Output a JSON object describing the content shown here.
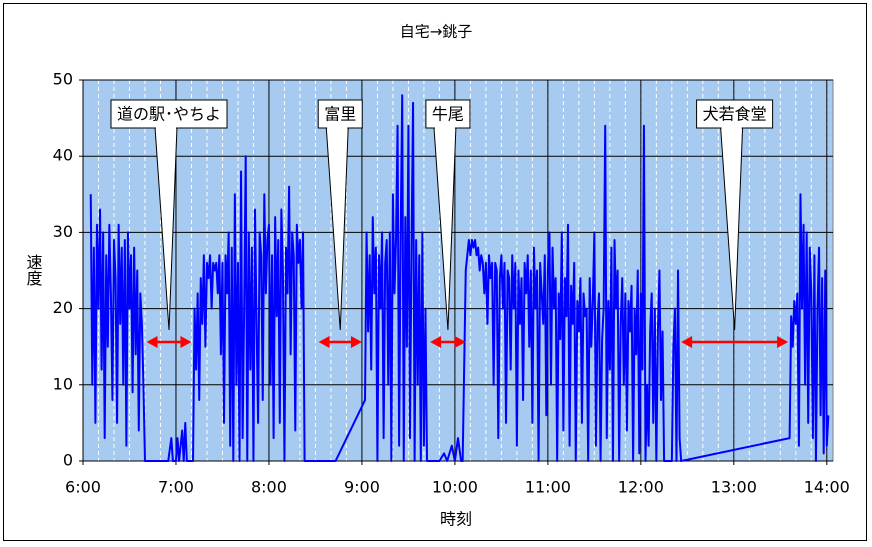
{
  "chart_data": {
    "type": "line",
    "title": "自宅→銚子",
    "x_label": "時刻",
    "y_label": "速度",
    "color": "#0000ff",
    "grid": true,
    "x_minor_grid_step": 10,
    "xlim": [
      360,
      844
    ],
    "ylim": [
      0,
      50
    ],
    "yticks": [
      0,
      10,
      20,
      30,
      40,
      50
    ],
    "xticks": [
      {
        "value": 360,
        "label": "6:00"
      },
      {
        "value": 420,
        "label": "7:00"
      },
      {
        "value": 480,
        "label": "8:00"
      },
      {
        "value": 540,
        "label": "9:00"
      },
      {
        "value": 600,
        "label": "10:00"
      },
      {
        "value": 660,
        "label": "11:00"
      },
      {
        "value": 720,
        "label": "12:00"
      },
      {
        "value": 780,
        "label": "13:00"
      },
      {
        "value": 840,
        "label": "14:00"
      }
    ],
    "annotations": [
      {
        "text": "道の駅･やちよ",
        "start": 401,
        "end": 430,
        "color": "#ff0000"
      },
      {
        "text": "富里",
        "start": 512,
        "end": 540,
        "color": "#ff0000"
      },
      {
        "text": "牛尾",
        "start": 584,
        "end": 607,
        "color": "#ff0000"
      },
      {
        "text": "犬若食堂",
        "start": 746,
        "end": 815,
        "color": "#ff0000"
      }
    ],
    "x": [
      365,
      366,
      367,
      368,
      369,
      370,
      371,
      372,
      373,
      374,
      375,
      376,
      377,
      378,
      379,
      380,
      381,
      382,
      383,
      384,
      385,
      386,
      387,
      388,
      389,
      390,
      391,
      392,
      393,
      394,
      395,
      396,
      397,
      398,
      399,
      400,
      405,
      415,
      417,
      418,
      420,
      421,
      422,
      424,
      425,
      426,
      427,
      431,
      432,
      433,
      434,
      435,
      436,
      437,
      438,
      439,
      440,
      441,
      442,
      443,
      444,
      445,
      446,
      447,
      448,
      449,
      450,
      451,
      452,
      453,
      454,
      455,
      456,
      457,
      458,
      459,
      460,
      461,
      462,
      463,
      464,
      465,
      466,
      467,
      468,
      469,
      470,
      471,
      472,
      473,
      474,
      475,
      476,
      477,
      478,
      479,
      480,
      481,
      482,
      483,
      484,
      485,
      486,
      487,
      488,
      489,
      490,
      491,
      492,
      493,
      494,
      495,
      496,
      497,
      498,
      499,
      500,
      501,
      502,
      503,
      505,
      515,
      523,
      542,
      543,
      544,
      545,
      546,
      547,
      548,
      549,
      550,
      551,
      552,
      553,
      554,
      555,
      556,
      557,
      558,
      559,
      560,
      561,
      562,
      563,
      564,
      565,
      566,
      567,
      568,
      569,
      570,
      571,
      572,
      573,
      574,
      575,
      576,
      577,
      578,
      579,
      580,
      581,
      582,
      590,
      593,
      595,
      598,
      600,
      602,
      604,
      605,
      607,
      608,
      609,
      610,
      611,
      612,
      613,
      614,
      615,
      616,
      617,
      618,
      619,
      620,
      621,
      622,
      623,
      624,
      625,
      626,
      627,
      628,
      629,
      630,
      631,
      632,
      633,
      634,
      635,
      636,
      637,
      638,
      639,
      640,
      641,
      642,
      643,
      644,
      645,
      646,
      647,
      648,
      649,
      650,
      651,
      652,
      653,
      654,
      655,
      656,
      657,
      658,
      659,
      660,
      661,
      662,
      663,
      664,
      665,
      666,
      667,
      668,
      669,
      670,
      671,
      672,
      673,
      674,
      675,
      676,
      677,
      678,
      679,
      680,
      681,
      682,
      683,
      684,
      685,
      686,
      687,
      688,
      689,
      690,
      691,
      692,
      693,
      694,
      695,
      696,
      697,
      698,
      699,
      700,
      701,
      702,
      703,
      704,
      705,
      706,
      707,
      708,
      709,
      710,
      711,
      712,
      713,
      714,
      715,
      716,
      717,
      718,
      719,
      720,
      721,
      722,
      723,
      724,
      725,
      726,
      727,
      728,
      729,
      730,
      731,
      732,
      733,
      734,
      735,
      740,
      741,
      742,
      743,
      744,
      745,
      746,
      816,
      817,
      818,
      819,
      820,
      821,
      822,
      823,
      824,
      825,
      826,
      827,
      828,
      829,
      830,
      831,
      832,
      833,
      834,
      835,
      836,
      837,
      838,
      839,
      840,
      841
    ],
    "values": [
      35,
      10,
      28,
      5,
      31,
      20,
      33,
      12,
      30,
      3,
      27,
      15,
      31,
      22,
      8,
      29,
      24,
      5,
      31,
      18,
      28,
      10,
      29,
      2,
      30,
      20,
      27,
      9,
      28,
      14,
      25,
      4,
      22,
      18,
      10,
      0,
      0,
      0,
      3,
      0,
      0,
      3,
      0,
      4,
      0,
      5,
      0,
      0,
      20,
      12,
      22,
      8,
      24,
      18,
      27,
      15,
      26,
      24,
      27,
      20,
      26,
      25,
      26,
      22,
      27,
      14,
      26,
      5,
      27,
      22,
      30,
      2,
      28,
      0,
      35,
      10,
      26,
      0,
      38,
      3,
      20,
      40,
      0,
      30,
      12,
      28,
      0,
      33,
      18,
      5,
      30,
      27,
      8,
      35,
      22,
      29,
      31,
      10,
      27,
      3,
      32,
      19,
      29,
      5,
      33,
      25,
      0,
      28,
      22,
      36,
      14,
      30,
      27,
      4,
      31,
      26,
      29,
      20,
      30,
      0,
      0,
      0,
      0,
      8,
      30,
      17,
      27,
      12,
      32,
      22,
      28,
      0,
      27,
      20,
      30,
      3,
      26,
      29,
      10,
      30,
      0,
      35,
      22,
      29,
      44,
      2,
      30,
      48,
      0,
      32,
      15,
      44,
      3,
      28,
      47,
      0,
      29,
      10,
      27,
      0,
      30,
      2,
      20,
      0,
      0,
      1,
      0,
      2,
      0,
      3,
      0,
      0,
      25,
      27,
      29,
      27,
      29,
      28,
      29,
      27,
      28,
      25,
      27,
      26,
      22,
      26,
      18,
      27,
      24,
      26,
      10,
      26,
      25,
      3,
      24,
      27,
      20,
      26,
      5,
      25,
      24,
      12,
      27,
      20,
      26,
      2,
      25,
      18,
      24,
      8,
      26,
      22,
      27,
      15,
      25,
      5,
      28,
      20,
      25,
      0,
      26,
      22,
      18,
      27,
      6,
      25,
      30,
      10,
      28,
      20,
      24,
      0,
      22,
      16,
      30,
      4,
      24,
      19,
      31,
      2,
      23,
      18,
      26,
      0,
      21,
      17,
      24,
      5,
      22,
      19,
      20,
      0,
      24,
      15,
      21,
      30,
      2,
      18,
      22,
      0,
      16,
      20,
      44,
      3,
      21,
      12,
      28,
      0,
      29,
      20,
      25,
      0,
      18,
      24,
      10,
      22,
      4,
      21,
      17,
      23,
      0,
      20,
      14,
      25,
      1,
      22,
      12,
      44,
      0,
      10,
      2,
      17,
      22,
      5,
      20,
      0,
      17,
      25,
      8,
      17,
      0,
      0,
      15,
      20,
      0,
      25,
      3,
      0,
      3,
      19,
      15,
      21,
      18,
      22,
      2,
      35,
      20,
      31,
      10,
      30,
      5,
      28,
      22,
      3,
      27,
      0,
      20,
      28,
      6,
      24,
      1,
      25,
      2,
      6
    ]
  }
}
